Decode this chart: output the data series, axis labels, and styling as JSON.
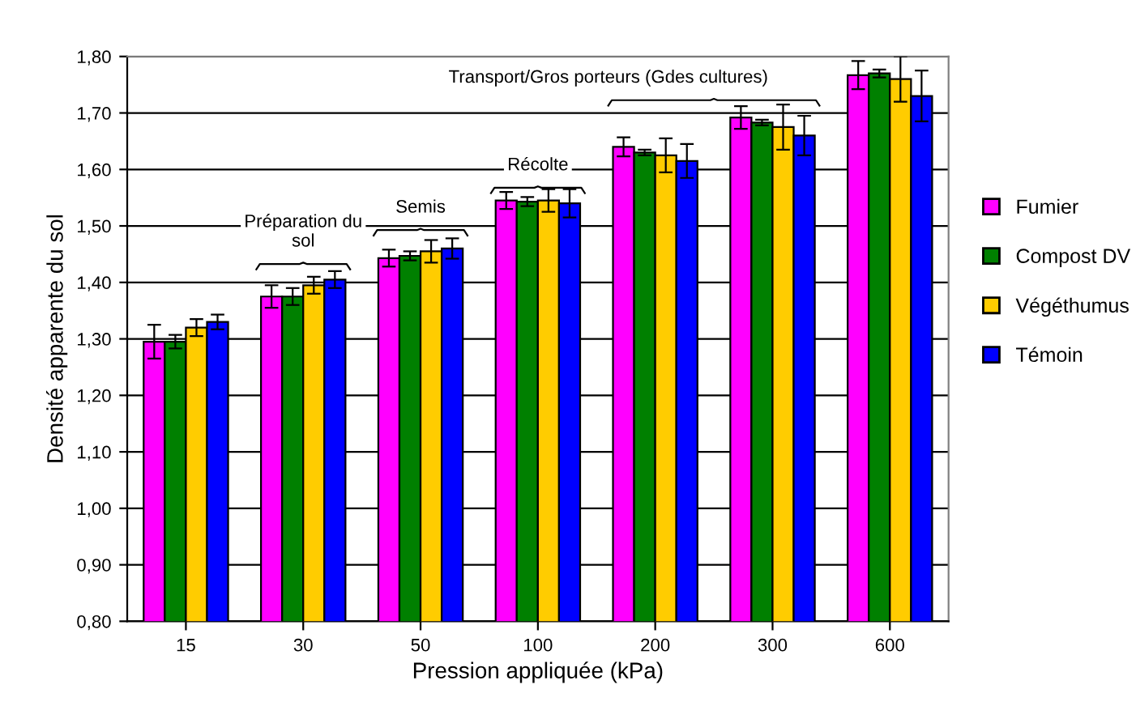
{
  "chart_data": {
    "type": "bar",
    "xlabel": "Pression appliquée (kPa)",
    "ylabel": "Densité apparente du sol",
    "categories": [
      "15",
      "30",
      "50",
      "100",
      "200",
      "300",
      "600"
    ],
    "series": [
      {
        "name": "Fumier",
        "color": "#ff00ff",
        "values": [
          1.295,
          1.375,
          1.443,
          1.545,
          1.64,
          1.692,
          1.767
        ],
        "errors": [
          0.03,
          0.02,
          0.015,
          0.015,
          0.017,
          0.02,
          0.025
        ]
      },
      {
        "name": "Compost DV",
        "color": "#008000",
        "values": [
          1.295,
          1.375,
          1.447,
          1.543,
          1.63,
          1.683,
          1.77
        ],
        "errors": [
          0.012,
          0.015,
          0.008,
          0.008,
          0.005,
          0.005,
          0.007
        ]
      },
      {
        "name": "Végéthumus",
        "color": "#ffcc00",
        "values": [
          1.32,
          1.395,
          1.455,
          1.545,
          1.625,
          1.675,
          1.76
        ],
        "errors": [
          0.015,
          0.015,
          0.02,
          0.02,
          0.03,
          0.04,
          0.04
        ]
      },
      {
        "name": "Témoin",
        "color": "#0000ff",
        "values": [
          1.33,
          1.405,
          1.46,
          1.54,
          1.615,
          1.66,
          1.73
        ],
        "errors": [
          0.013,
          0.015,
          0.018,
          0.025,
          0.03,
          0.035,
          0.045
        ]
      }
    ],
    "ylim": [
      0.8,
      1.8
    ],
    "yticks": [
      {
        "value": 0.8,
        "label": "0,80"
      },
      {
        "value": 0.9,
        "label": "0,90"
      },
      {
        "value": 1.0,
        "label": "1,00"
      },
      {
        "value": 1.1,
        "label": "1,10"
      },
      {
        "value": 1.2,
        "label": "1,20"
      },
      {
        "value": 1.3,
        "label": "1,30"
      },
      {
        "value": 1.4,
        "label": "1,40"
      },
      {
        "value": 1.5,
        "label": "1,50"
      },
      {
        "value": 1.6,
        "label": "1,60"
      },
      {
        "value": 1.7,
        "label": "1,70"
      },
      {
        "value": 1.8,
        "label": "1,80"
      }
    ],
    "grid": "y",
    "legend": "right",
    "annotations": [
      "Préparation du\nsol",
      "Semis",
      "Récolte",
      "Transport/Gros porteurs (Gdes cultures)"
    ]
  }
}
